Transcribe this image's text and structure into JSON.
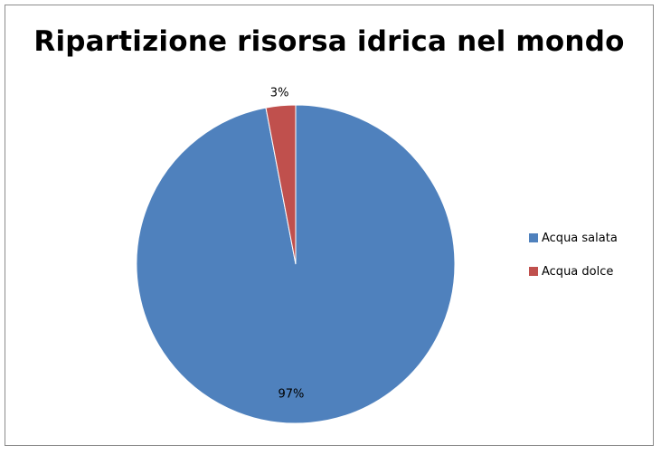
{
  "chart_data": {
    "type": "pie",
    "title": "Ripartizione risorsa idrica nel mondo",
    "categories": [
      "Acqua salata",
      "Acqua dolce"
    ],
    "values": [
      97,
      3
    ],
    "data_labels": [
      "97%",
      "3%"
    ],
    "colors": [
      "#4f81bd",
      "#c0504d"
    ],
    "legend": "right",
    "start_angle": "12 o'clock, counter-clockwise from first slice"
  }
}
